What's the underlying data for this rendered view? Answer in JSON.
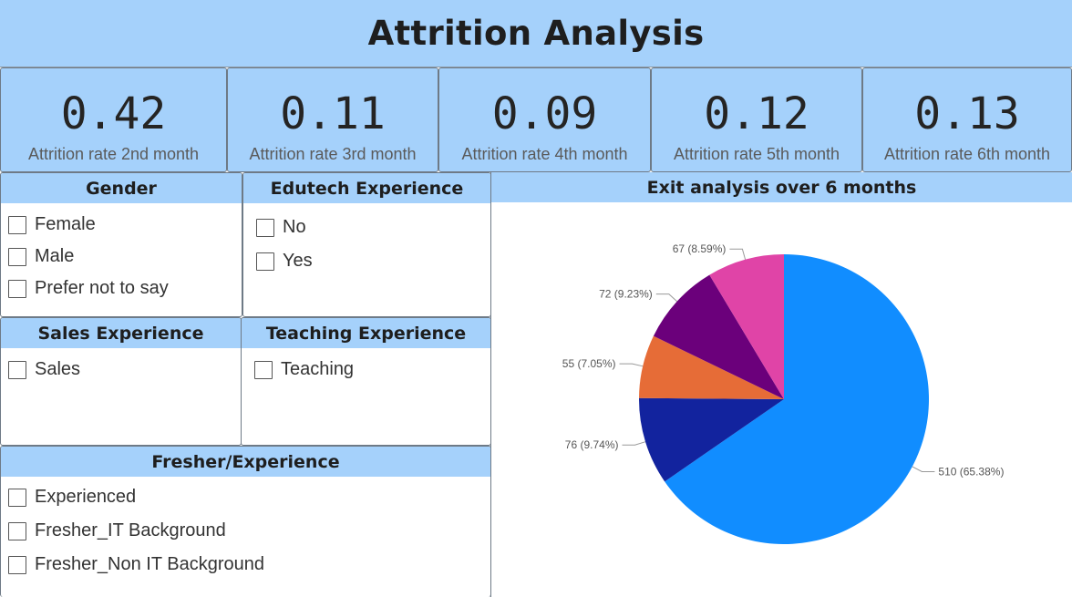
{
  "title": "Attrition Analysis",
  "kpis": [
    {
      "value": "0.42",
      "label": "Attrition rate 2nd month"
    },
    {
      "value": "0.11",
      "label": "Attrition rate 3rd month"
    },
    {
      "value": "0.09",
      "label": "Attrition rate 4th month"
    },
    {
      "value": "0.12",
      "label": "Attrition rate 5th month"
    },
    {
      "value": "0.13",
      "label": "Attrition rate 6th month"
    }
  ],
  "slicers": {
    "gender": {
      "title": "Gender",
      "options": [
        "Female",
        "Male",
        "Prefer not to say"
      ]
    },
    "edutech": {
      "title": "Edutech Experience",
      "options": [
        "No",
        "Yes"
      ]
    },
    "sales": {
      "title": "Sales Experience",
      "options": [
        "Sales"
      ]
    },
    "teaching": {
      "title": "Teaching Experience",
      "options": [
        "Teaching"
      ]
    },
    "fresher": {
      "title": "Fresher/Experience",
      "options": [
        "Experienced",
        "Fresher_IT Background",
        "Fresher_Non IT Background"
      ]
    }
  },
  "chart_data": {
    "type": "pie",
    "title": "Exit analysis over 6 months",
    "slices": [
      {
        "value": 510,
        "percent": 65.38,
        "label": "510 (65.38%)",
        "color": "#118dff"
      },
      {
        "value": 76,
        "percent": 9.74,
        "label": "76 (9.74%)",
        "color": "#12239e"
      },
      {
        "value": 55,
        "percent": 7.05,
        "label": "55 (7.05%)",
        "color": "#e66c37"
      },
      {
        "value": 72,
        "percent": 9.23,
        "label": "72 (9.23%)",
        "color": "#6b007b"
      },
      {
        "value": 67,
        "percent": 8.59,
        "label": "67 (8.59%)",
        "color": "#e044a7"
      }
    ],
    "legend": "none"
  }
}
